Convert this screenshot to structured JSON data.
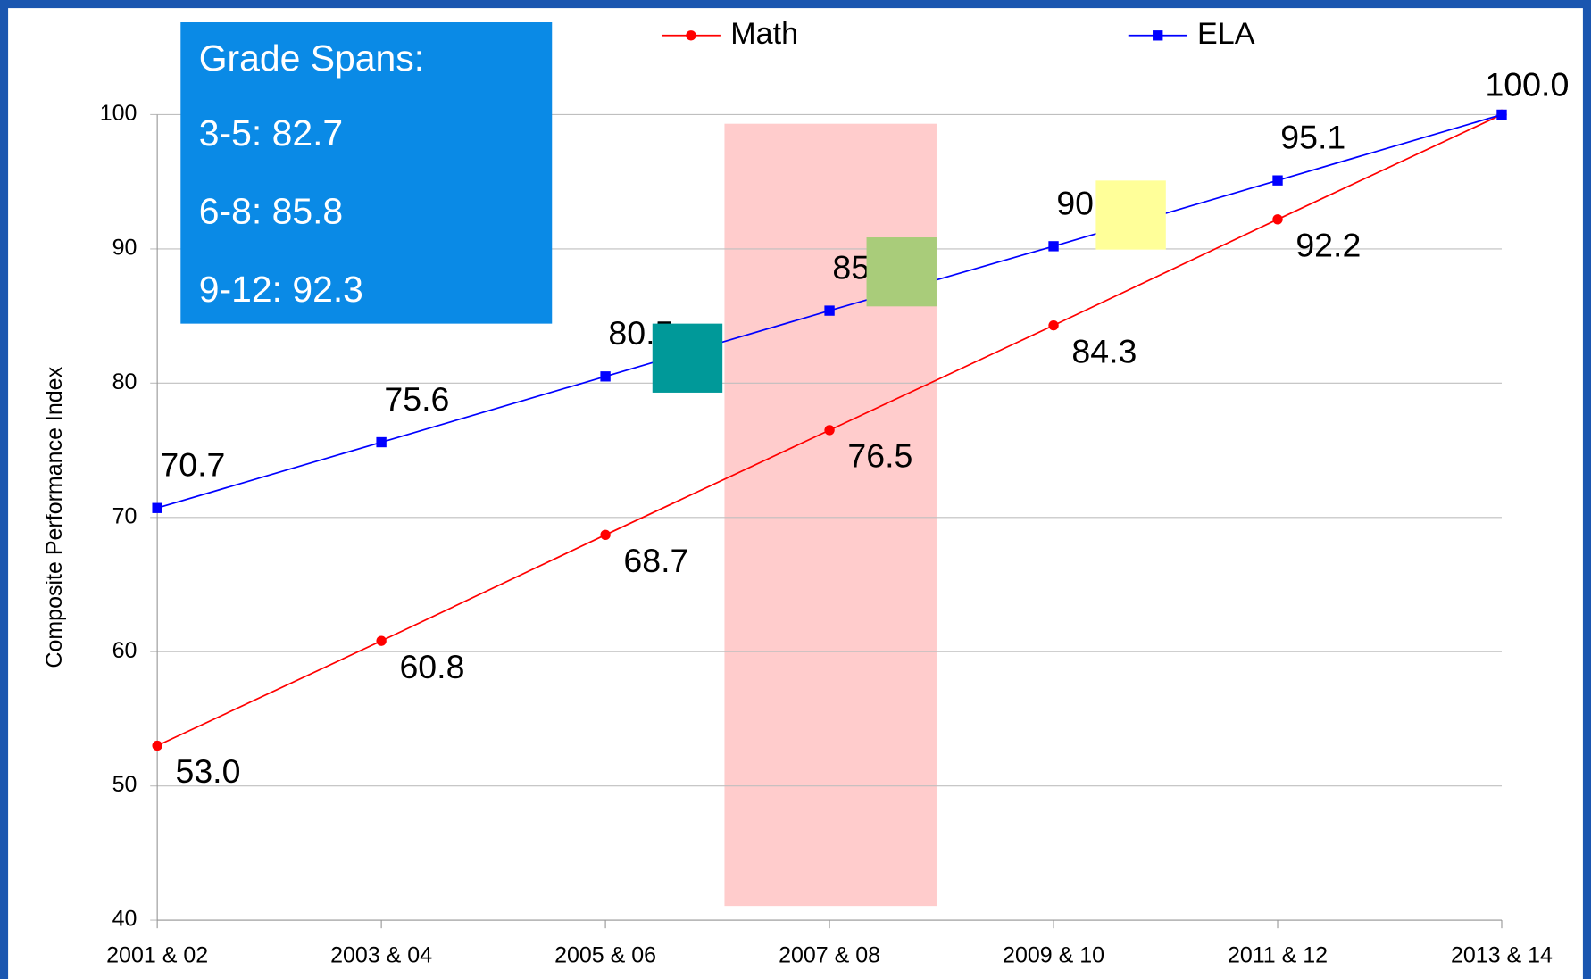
{
  "chart_data": {
    "type": "line",
    "y_label": "Composite Performance Index",
    "categories": [
      "2001 & 02",
      "2003 & 04",
      "2005 & 06",
      "2007 & 08",
      "2009 & 10",
      "2011 & 12",
      "2013 & 14"
    ],
    "series": [
      {
        "name": "Math",
        "color": "#ff0000",
        "marker": "circle",
        "label_position": "below",
        "values": [
          53.0,
          60.8,
          68.7,
          76.5,
          84.3,
          92.2,
          100.0
        ],
        "value_labels": [
          "53.0",
          "60.8",
          "68.7",
          "76.5",
          "84.3",
          "92.2",
          "100.0"
        ]
      },
      {
        "name": "ELA",
        "color": "#0000ff",
        "marker": "square",
        "label_position": "above",
        "values": [
          70.7,
          75.6,
          80.5,
          85.4,
          90.2,
          95.1,
          100.0
        ],
        "value_labels": [
          "70.7",
          "75.6",
          "80.5",
          "85.4",
          "90.2",
          "95.1",
          "100.0"
        ]
      }
    ],
    "ylim": [
      40,
      100
    ],
    "yticks": [
      40,
      50,
      60,
      70,
      80,
      90,
      100
    ],
    "grid": true,
    "legend": "top",
    "annotations": [
      "Grade Spans:",
      "3-5: 82.7",
      "6-8: 85.8",
      "9-12: 92.3"
    ]
  }
}
